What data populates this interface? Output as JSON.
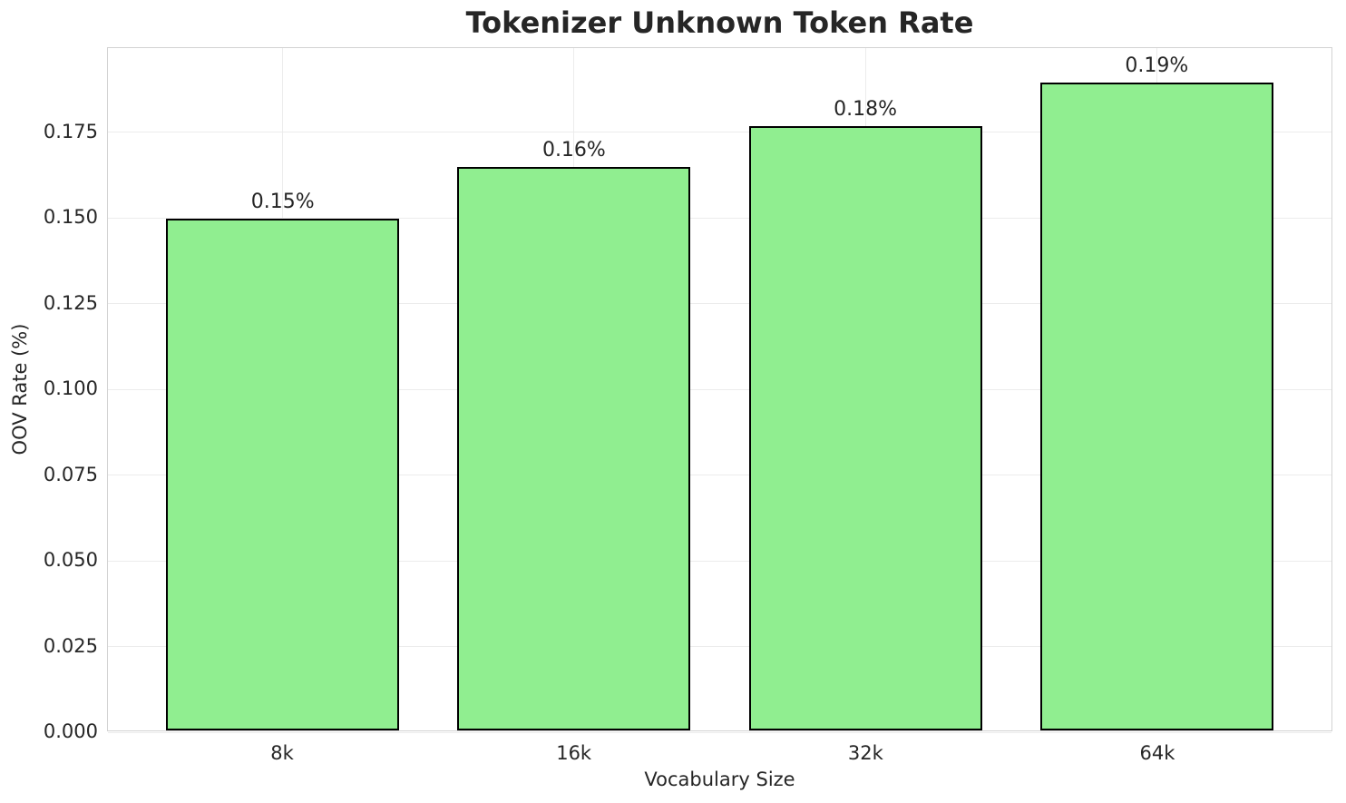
{
  "chart_data": {
    "type": "bar",
    "title": "Tokenizer Unknown Token Rate",
    "xlabel": "Vocabulary Size",
    "ylabel": "OOV Rate (%)",
    "categories": [
      "8k",
      "16k",
      "32k",
      "64k"
    ],
    "values": [
      0.1495,
      0.1648,
      0.1766,
      0.1895
    ],
    "bar_labels": [
      "0.15%",
      "0.16%",
      "0.18%",
      "0.19%"
    ],
    "ylim": [
      0,
      0.1995
    ],
    "yticks": [
      0.0,
      0.025,
      0.05,
      0.075,
      0.1,
      0.125,
      0.15,
      0.175
    ],
    "ytick_labels": [
      "0.000",
      "0.025",
      "0.050",
      "0.075",
      "0.100",
      "0.125",
      "0.150",
      "0.175"
    ],
    "bar_color": "#90EE90",
    "bar_edge_color": "#000000",
    "grid": true,
    "grid_color": "#ececec",
    "legend": null
  }
}
